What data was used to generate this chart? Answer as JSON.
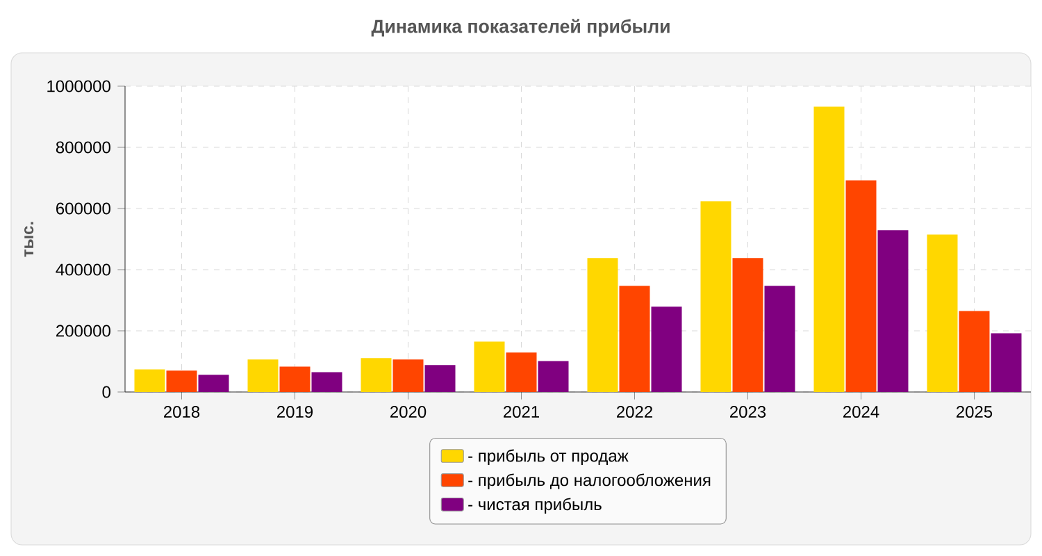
{
  "chart_data": {
    "type": "bar",
    "title": "Динамика показателей прибыли",
    "ylabel": "тыс.",
    "categories": [
      "2018",
      "2019",
      "2020",
      "2021",
      "2022",
      "2023",
      "2024",
      "2025"
    ],
    "series": [
      {
        "name": "- прибыль от продаж",
        "color": "#ffd700",
        "values": [
          74000,
          106000,
          111000,
          165000,
          438000,
          624000,
          933000,
          515000
        ]
      },
      {
        "name": "- прибыль до налогообложения",
        "color": "#ff4500",
        "values": [
          70000,
          83000,
          106000,
          129000,
          347000,
          438000,
          692000,
          265000
        ]
      },
      {
        "name": "- чистая прибыль",
        "color": "#800080",
        "values": [
          56000,
          65000,
          88000,
          101000,
          279000,
          347000,
          529000,
          192000
        ]
      }
    ],
    "ylim": [
      0,
      1000000
    ],
    "yticks": [
      0,
      200000,
      400000,
      600000,
      800000,
      1000000
    ],
    "grid": true,
    "legend": "bottom"
  }
}
